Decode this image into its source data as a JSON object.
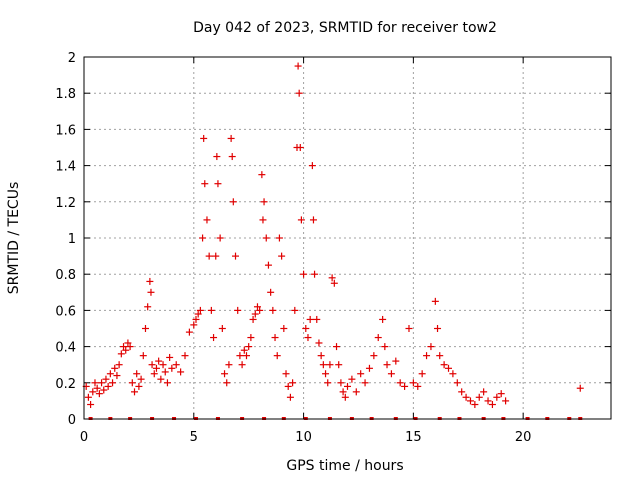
{
  "chart_data": {
    "type": "scatter",
    "title": "Day 042 of 2023, SRMTID for receiver tow2",
    "xlabel": "GPS time / hours",
    "ylabel": "SRMTID / TECUs",
    "xlim": [
      0,
      24
    ],
    "ylim": [
      0,
      2
    ],
    "xticks": [
      0,
      5,
      10,
      15,
      20
    ],
    "xtick_labels": [
      "0",
      "5",
      "10",
      "15",
      "20"
    ],
    "yticks": [
      0,
      0.2,
      0.4,
      0.6,
      0.8,
      1,
      1.2,
      1.4,
      1.6,
      1.8,
      2
    ],
    "ytick_labels": [
      "0",
      "0.2",
      "0.4",
      "0.6",
      "0.8",
      "1",
      "1.2",
      "1.4",
      "1.6",
      "1.8",
      "2"
    ],
    "grid": true,
    "marker": "+",
    "color": "#e00000",
    "series": [
      {
        "name": "tow2",
        "points": [
          [
            0.1,
            0.18
          ],
          [
            0.2,
            0.12
          ],
          [
            0.3,
            0.08
          ],
          [
            0.4,
            0.15
          ],
          [
            0.5,
            0.2
          ],
          [
            0.6,
            0.17
          ],
          [
            0.7,
            0.14
          ],
          [
            0.8,
            0.2
          ],
          [
            0.9,
            0.16
          ],
          [
            1.0,
            0.22
          ],
          [
            1.1,
            0.18
          ],
          [
            1.2,
            0.25
          ],
          [
            1.3,
            0.2
          ],
          [
            1.4,
            0.28
          ],
          [
            1.5,
            0.24
          ],
          [
            1.6,
            0.3
          ],
          [
            1.7,
            0.36
          ],
          [
            1.8,
            0.4
          ],
          [
            1.9,
            0.38
          ],
          [
            2.0,
            0.42
          ],
          [
            2.1,
            0.4
          ],
          [
            2.2,
            0.2
          ],
          [
            2.3,
            0.15
          ],
          [
            2.4,
            0.25
          ],
          [
            2.5,
            0.18
          ],
          [
            2.6,
            0.22
          ],
          [
            2.7,
            0.35
          ],
          [
            2.8,
            0.5
          ],
          [
            2.9,
            0.62
          ],
          [
            3.0,
            0.76
          ],
          [
            3.05,
            0.7
          ],
          [
            3.1,
            0.3
          ],
          [
            3.2,
            0.25
          ],
          [
            3.3,
            0.28
          ],
          [
            3.4,
            0.32
          ],
          [
            3.5,
            0.22
          ],
          [
            3.6,
            0.3
          ],
          [
            3.7,
            0.26
          ],
          [
            3.8,
            0.2
          ],
          [
            3.9,
            0.34
          ],
          [
            4.0,
            0.28
          ],
          [
            4.2,
            0.3
          ],
          [
            4.4,
            0.26
          ],
          [
            4.6,
            0.35
          ],
          [
            4.8,
            0.48
          ],
          [
            5.0,
            0.52
          ],
          [
            5.1,
            0.55
          ],
          [
            5.2,
            0.58
          ],
          [
            5.3,
            0.6
          ],
          [
            5.4,
            1.0
          ],
          [
            5.45,
            1.55
          ],
          [
            5.5,
            1.3
          ],
          [
            5.6,
            1.1
          ],
          [
            5.7,
            0.9
          ],
          [
            5.8,
            0.6
          ],
          [
            5.9,
            0.45
          ],
          [
            6.0,
            0.9
          ],
          [
            6.05,
            1.45
          ],
          [
            6.1,
            1.3
          ],
          [
            6.2,
            1.0
          ],
          [
            6.3,
            0.5
          ],
          [
            6.4,
            0.25
          ],
          [
            6.5,
            0.2
          ],
          [
            6.6,
            0.3
          ],
          [
            6.7,
            1.55
          ],
          [
            6.75,
            1.45
          ],
          [
            6.8,
            1.2
          ],
          [
            6.9,
            0.9
          ],
          [
            7.0,
            0.6
          ],
          [
            7.1,
            0.35
          ],
          [
            7.2,
            0.3
          ],
          [
            7.3,
            0.38
          ],
          [
            7.4,
            0.35
          ],
          [
            7.5,
            0.4
          ],
          [
            7.6,
            0.45
          ],
          [
            7.7,
            0.55
          ],
          [
            7.8,
            0.58
          ],
          [
            7.9,
            0.62
          ],
          [
            8.0,
            0.6
          ],
          [
            8.1,
            1.35
          ],
          [
            8.15,
            1.1
          ],
          [
            8.2,
            1.2
          ],
          [
            8.3,
            1.0
          ],
          [
            8.4,
            0.85
          ],
          [
            8.5,
            0.7
          ],
          [
            8.6,
            0.6
          ],
          [
            8.7,
            0.45
          ],
          [
            8.8,
            0.35
          ],
          [
            8.9,
            1.0
          ],
          [
            9.0,
            0.9
          ],
          [
            9.1,
            0.5
          ],
          [
            9.2,
            0.25
          ],
          [
            9.3,
            0.18
          ],
          [
            9.4,
            0.12
          ],
          [
            9.5,
            0.2
          ],
          [
            9.6,
            0.6
          ],
          [
            9.7,
            1.5
          ],
          [
            9.75,
            1.95
          ],
          [
            9.8,
            1.8
          ],
          [
            9.85,
            1.5
          ],
          [
            9.9,
            1.1
          ],
          [
            10.0,
            0.8
          ],
          [
            10.1,
            0.5
          ],
          [
            10.2,
            0.45
          ],
          [
            10.3,
            0.55
          ],
          [
            10.4,
            1.4
          ],
          [
            10.45,
            1.1
          ],
          [
            10.5,
            0.8
          ],
          [
            10.6,
            0.55
          ],
          [
            10.7,
            0.42
          ],
          [
            10.8,
            0.35
          ],
          [
            10.9,
            0.3
          ],
          [
            11.0,
            0.25
          ],
          [
            11.1,
            0.2
          ],
          [
            11.2,
            0.3
          ],
          [
            11.3,
            0.78
          ],
          [
            11.4,
            0.75
          ],
          [
            11.5,
            0.4
          ],
          [
            11.6,
            0.3
          ],
          [
            11.7,
            0.2
          ],
          [
            11.8,
            0.15
          ],
          [
            11.9,
            0.12
          ],
          [
            12.0,
            0.18
          ],
          [
            12.2,
            0.22
          ],
          [
            12.4,
            0.15
          ],
          [
            12.6,
            0.25
          ],
          [
            12.8,
            0.2
          ],
          [
            13.0,
            0.28
          ],
          [
            13.2,
            0.35
          ],
          [
            13.4,
            0.45
          ],
          [
            13.6,
            0.55
          ],
          [
            13.7,
            0.4
          ],
          [
            13.8,
            0.3
          ],
          [
            14.0,
            0.25
          ],
          [
            14.2,
            0.32
          ],
          [
            14.4,
            0.2
          ],
          [
            14.6,
            0.18
          ],
          [
            14.8,
            0.5
          ],
          [
            15.0,
            0.2
          ],
          [
            15.2,
            0.18
          ],
          [
            15.4,
            0.25
          ],
          [
            15.6,
            0.35
          ],
          [
            15.8,
            0.4
          ],
          [
            16.0,
            0.65
          ],
          [
            16.1,
            0.5
          ],
          [
            16.2,
            0.35
          ],
          [
            16.4,
            0.3
          ],
          [
            16.6,
            0.28
          ],
          [
            16.8,
            0.25
          ],
          [
            17.0,
            0.2
          ],
          [
            17.2,
            0.15
          ],
          [
            17.4,
            0.12
          ],
          [
            17.6,
            0.1
          ],
          [
            17.8,
            0.08
          ],
          [
            18.0,
            0.12
          ],
          [
            18.2,
            0.15
          ],
          [
            18.4,
            0.1
          ],
          [
            18.6,
            0.08
          ],
          [
            18.8,
            0.12
          ],
          [
            19.0,
            0.14
          ],
          [
            19.2,
            0.1
          ],
          [
            22.6,
            0.17
          ]
        ]
      }
    ],
    "baseline_gaps_x": [
      0.3,
      1.2,
      2.1,
      3.1,
      4.1,
      5.1,
      6.1,
      7.2,
      8.2,
      9.1,
      10.1,
      11.2,
      12.2,
      13.1,
      14.2,
      15.1,
      16.2,
      17.1,
      18.2,
      19.1,
      20.2,
      21.1,
      22.1,
      22.6
    ]
  }
}
